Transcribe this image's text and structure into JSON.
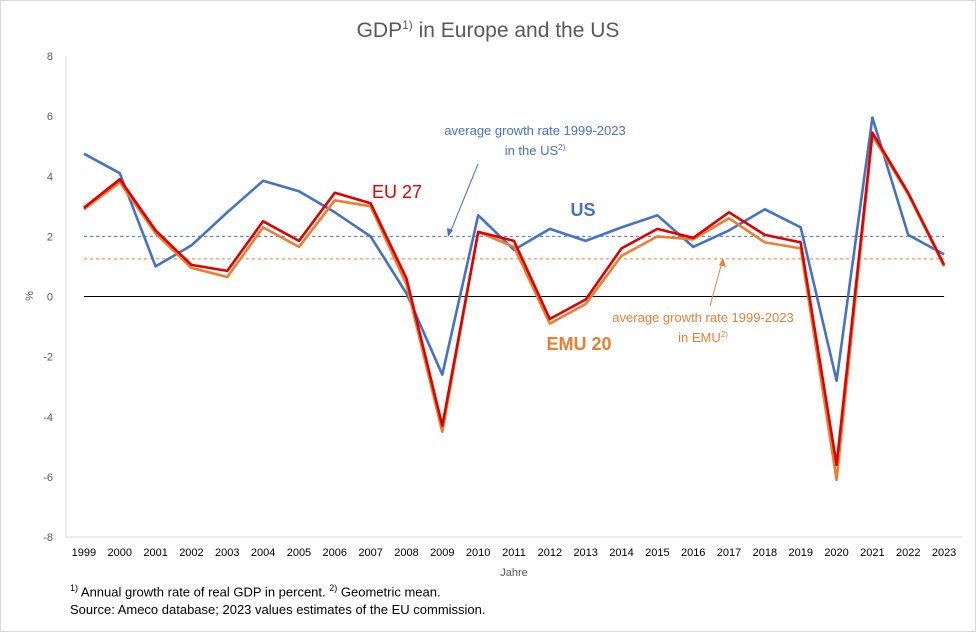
{
  "title": {
    "main": "GDP",
    "sup": "1)",
    "rest": " in Europe and the US"
  },
  "footnotes": {
    "line1_sup1": "1)",
    "line1_text1": " Annual growth rate of real GDP in percent. ",
    "line1_sup2": "2)",
    "line1_text2": " Geometric mean.",
    "line2": "Source: Ameco database; 2023  values estimates of the EU commission."
  },
  "annotations": {
    "us_avg_line1": "average growth  rate 1999-2023",
    "us_avg_line2": "in the US",
    "us_avg_sup": "2)",
    "emu_avg_line1": "average growth  rate 1999-2023",
    "emu_avg_line2": "in EMU",
    "emu_avg_sup": "2)",
    "label_us": "US",
    "label_eu": "EU  27",
    "label_emu": "EMU 20"
  },
  "colors": {
    "us": "#4472c4",
    "eu27": "#e00000",
    "emu20": "#ed7d31",
    "axis": "#d9d9d9",
    "text": "#595959"
  },
  "chart_data": {
    "type": "line",
    "title": "GDP1) in Europe and the US",
    "xlabel": "Jahre",
    "ylabel": "%",
    "ylim": [
      -8,
      8
    ],
    "yticks": [
      -8,
      -6,
      -4,
      -2,
      0,
      2,
      4,
      6,
      8
    ],
    "grid": false,
    "categories": [
      "1999",
      "2000",
      "2001",
      "2002",
      "2003",
      "2004",
      "2005",
      "2006",
      "2007",
      "2008",
      "2009",
      "2010",
      "2011",
      "2012",
      "2013",
      "2014",
      "2015",
      "2016",
      "2017",
      "2018",
      "2019",
      "2020",
      "2021",
      "2022",
      "2023"
    ],
    "series": [
      {
        "name": "US",
        "values": [
          4.75,
          4.1,
          1.0,
          1.7,
          2.8,
          3.85,
          3.5,
          2.8,
          2.0,
          0.1,
          -2.6,
          2.7,
          1.55,
          2.25,
          1.85,
          2.3,
          2.7,
          1.65,
          2.2,
          2.9,
          2.3,
          -2.8,
          5.95,
          2.05,
          1.4
        ]
      },
      {
        "name": "EU  27",
        "values": [
          2.95,
          3.9,
          2.2,
          1.05,
          0.85,
          2.5,
          1.85,
          3.45,
          3.1,
          0.6,
          -4.3,
          2.15,
          1.85,
          -0.75,
          -0.1,
          1.6,
          2.25,
          1.95,
          2.8,
          2.05,
          1.8,
          -5.6,
          5.45,
          3.45,
          1.05
        ]
      },
      {
        "name": "EMU 20",
        "values": [
          2.9,
          3.8,
          2.1,
          0.95,
          0.65,
          2.3,
          1.65,
          3.2,
          3.0,
          0.4,
          -4.5,
          2.15,
          1.65,
          -0.9,
          -0.25,
          1.35,
          2.0,
          1.9,
          2.6,
          1.8,
          1.6,
          -6.1,
          5.35,
          3.4,
          1.0
        ]
      }
    ],
    "averages": [
      {
        "name": "average growth  rate 1999-2023 in the US",
        "value": 2.0
      },
      {
        "name": "average growth  rate 1999-2023 in EMU",
        "value": 1.25
      }
    ]
  }
}
